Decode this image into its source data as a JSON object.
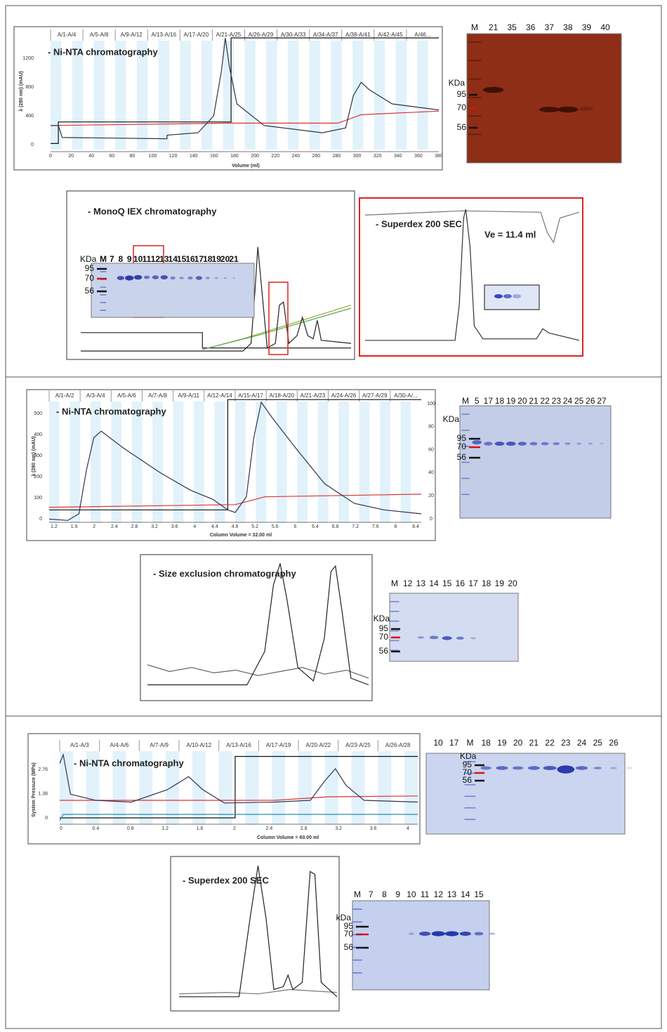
{
  "panels": [
    {
      "title": "- Ni-NTA chromatography",
      "fractions": [
        "A/1-A/4",
        "A/5-A/8",
        "A/9-A/12",
        "A/13-A/16",
        "A/17-A/20",
        "A/21-A/25",
        "A/26-A/29",
        "A/30-A/33",
        "A/34-A/37",
        "A/38-A/41",
        "A/42-A/45",
        "A/46..."
      ],
      "yticks": [
        "0",
        "400",
        "800",
        "1200"
      ],
      "xticks": [
        "0",
        "20",
        "40",
        "60",
        "80",
        "100",
        "120",
        "140",
        "160",
        "180",
        "200",
        "220",
        "240",
        "260",
        "280",
        "300",
        "320",
        "340",
        "360",
        "380"
      ],
      "xlabel": "Volume (ml)",
      "ylabel": "λ (280 nm) (mAU)"
    },
    {
      "title": "- MonoQ IEX chromatography"
    },
    {
      "title": "- Superdex 200 SEC",
      "note": "Ve = 11.4 ml"
    },
    {
      "title": "- Ni-NTA chromatography",
      "fractions": [
        "A/1-A/2",
        "A/3-A/4",
        "A/5-A/6",
        "A/7-A/8",
        "A/9-A/11",
        "A/12-A/14",
        "A/15-A/17",
        "A/18-A/20",
        "A/21-A/23",
        "A/24-A/26",
        "A/27-A/29",
        "A/30-A/..."
      ],
      "yticks": [
        "0",
        "100",
        "200",
        "300",
        "400",
        "500"
      ],
      "y2ticks": [
        "0",
        "20",
        "40",
        "60",
        "80",
        "100"
      ],
      "xticks": [
        "1.2",
        "1.6",
        "2",
        "2.4",
        "2.8",
        "3.2",
        "3.6",
        "4",
        "4.4",
        "4.8",
        "5.2",
        "5.6",
        "6",
        "6.4",
        "6.8",
        "7.2",
        "7.6",
        "8",
        "8.4"
      ],
      "xlabel": "Column Volume  = 32.00 ml",
      "ylabel": "λ (280 nm) (mAU)"
    },
    {
      "title": "- Size exclusion chromatography"
    },
    {
      "title": "- Ni-NTA chromatography",
      "fractions": [
        "A/1-A/3",
        "A/4-A/6",
        "A/7-A/9",
        "A/10-A/12",
        "A/13-A/16",
        "A/17-A/19",
        "A/20-A/22",
        "A/23-A/25",
        "A/26-A/28"
      ],
      "yticks": [
        "0",
        "1.38",
        "2.76"
      ],
      "xticks": [
        "0",
        "0.4",
        "0.8",
        "1.2",
        "1.6",
        "2",
        "2.4",
        "2.8",
        "3.2",
        "3.6",
        "4"
      ],
      "xlabel": "Column Volume = 60.00 ml",
      "ylabel": "System Pressure (MPa)"
    },
    {
      "title": "- Superdex 200 SEC"
    }
  ],
  "gels": [
    {
      "lanes": [
        "M",
        "21",
        "35",
        "36",
        "37",
        "38",
        "39",
        "40"
      ],
      "kda": "KDa",
      "markers": [
        "95",
        "70",
        "56"
      ]
    },
    {
      "lanes": [
        "M",
        "7",
        "8",
        "9",
        "10",
        "11",
        "12",
        "13",
        "14",
        "15",
        "16",
        "17",
        "18",
        "19",
        "20",
        "21"
      ],
      "kda": "KDa",
      "markers": [
        "95",
        "70",
        "56"
      ]
    },
    {
      "lanes": [
        "M",
        "5",
        "17",
        "18",
        "19",
        "20",
        "21",
        "22",
        "23",
        "24",
        "25",
        "26",
        "27"
      ],
      "kda": "KDa",
      "markers": [
        "95",
        "70",
        "56"
      ]
    },
    {
      "lanes": [
        "M",
        "12",
        "13",
        "14",
        "15",
        "16",
        "17",
        "18",
        "19",
        "20"
      ],
      "kda": "KDa",
      "markers": [
        "95",
        "70",
        "56"
      ]
    },
    {
      "lanes": [
        "10",
        "17",
        "M",
        "18",
        "19",
        "20",
        "21",
        "22",
        "23",
        "24",
        "25",
        "26"
      ],
      "kda": "KDa",
      "markers": [
        "95",
        "70",
        "56"
      ]
    },
    {
      "lanes": [
        "M",
        "7",
        "8",
        "9",
        "10",
        "11",
        "12",
        "13",
        "14",
        "15"
      ],
      "kda": "kDa",
      "markers": [
        "95",
        "70",
        "56"
      ]
    }
  ]
}
